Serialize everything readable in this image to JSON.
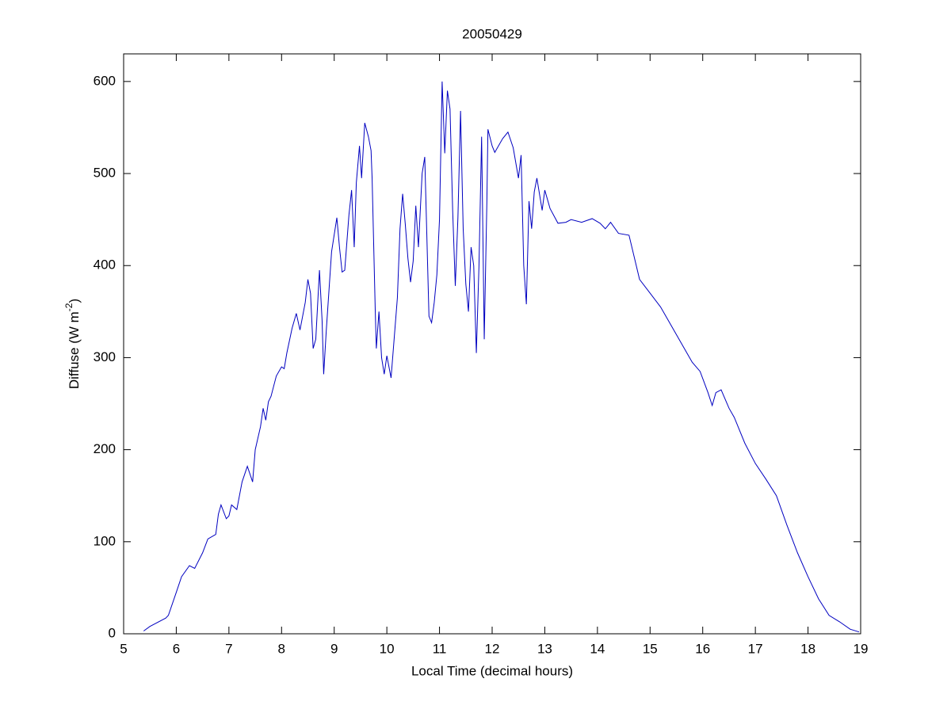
{
  "chart_data": {
    "type": "line",
    "title": "20050429",
    "xlabel": "Local Time (decimal hours)",
    "ylabel": {
      "text": "Diffuse (W m",
      "sup": "-2",
      "end": ")"
    },
    "xlim": [
      5,
      19
    ],
    "xticks": [
      5,
      6,
      7,
      8,
      9,
      10,
      11,
      12,
      13,
      14,
      15,
      16,
      17,
      18,
      19
    ],
    "ylim": [
      0,
      630
    ],
    "yticks": [
      0,
      100,
      200,
      300,
      400,
      500,
      600
    ],
    "series": [
      {
        "color": "#0000c0",
        "x": [
          5.38,
          5.5,
          5.8,
          5.85,
          6.0,
          6.1,
          6.25,
          6.35,
          6.5,
          6.6,
          6.75,
          6.8,
          6.85,
          6.95,
          7.0,
          7.05,
          7.15,
          7.25,
          7.35,
          7.45,
          7.5,
          7.6,
          7.65,
          7.7,
          7.75,
          7.8,
          7.9,
          8.0,
          8.05,
          8.1,
          8.2,
          8.28,
          8.35,
          8.45,
          8.5,
          8.55,
          8.6,
          8.65,
          8.72,
          8.77,
          8.8,
          8.85,
          8.95,
          9.05,
          9.1,
          9.15,
          9.2,
          9.28,
          9.33,
          9.38,
          9.42,
          9.48,
          9.52,
          9.58,
          9.65,
          9.7,
          9.72,
          9.78,
          9.8,
          9.85,
          9.9,
          9.95,
          10.0,
          10.08,
          10.2,
          10.25,
          10.3,
          10.35,
          10.4,
          10.45,
          10.5,
          10.55,
          10.6,
          10.67,
          10.72,
          10.8,
          10.85,
          10.9,
          10.95,
          11.0,
          11.05,
          11.1,
          11.15,
          11.2,
          11.25,
          11.3,
          11.35,
          11.4,
          11.45,
          11.5,
          11.55,
          11.6,
          11.65,
          11.7,
          11.75,
          11.8,
          11.85,
          11.9,
          11.92,
          12.0,
          12.05,
          12.2,
          12.3,
          12.4,
          12.5,
          12.55,
          12.6,
          12.65,
          12.7,
          12.75,
          12.8,
          12.85,
          12.95,
          13.0,
          13.1,
          13.25,
          13.4,
          13.5,
          13.7,
          13.9,
          14.05,
          14.15,
          14.25,
          14.4,
          14.6,
          14.8,
          15.0,
          15.2,
          15.3,
          15.5,
          15.7,
          15.8,
          15.95,
          16.1,
          16.18,
          16.25,
          16.35,
          16.5,
          16.6,
          16.8,
          17.0,
          17.2,
          17.4,
          17.6,
          17.8,
          18.0,
          18.2,
          18.4,
          18.6,
          18.8,
          18.97
        ],
        "values": [
          3,
          8,
          17,
          20,
          45,
          62,
          74,
          71,
          88,
          103,
          108,
          130,
          140,
          125,
          128,
          140,
          135,
          165,
          182,
          165,
          200,
          225,
          245,
          232,
          252,
          258,
          280,
          290,
          288,
          305,
          332,
          348,
          330,
          360,
          385,
          370,
          310,
          320,
          395,
          340,
          282,
          330,
          415,
          452,
          420,
          393,
          395,
          455,
          482,
          420,
          490,
          530,
          495,
          555,
          540,
          525,
          495,
          350,
          310,
          350,
          300,
          282,
          302,
          278,
          365,
          440,
          478,
          445,
          408,
          382,
          405,
          465,
          420,
          500,
          518,
          345,
          338,
          360,
          390,
          450,
          600,
          522,
          590,
          570,
          460,
          378,
          452,
          568,
          440,
          380,
          350,
          420,
          400,
          305,
          400,
          540,
          320,
          470,
          548,
          530,
          523,
          538,
          545,
          528,
          495,
          520,
          400,
          358,
          470,
          440,
          480,
          495,
          460,
          482,
          462,
          446,
          447,
          450,
          447,
          451,
          446,
          440,
          447,
          435,
          433,
          385,
          370,
          355,
          345,
          325,
          305,
          295,
          285,
          262,
          248,
          262,
          265,
          245,
          235,
          207,
          185,
          168,
          150,
          118,
          88,
          62,
          38,
          20,
          13,
          5,
          2
        ]
      }
    ]
  }
}
